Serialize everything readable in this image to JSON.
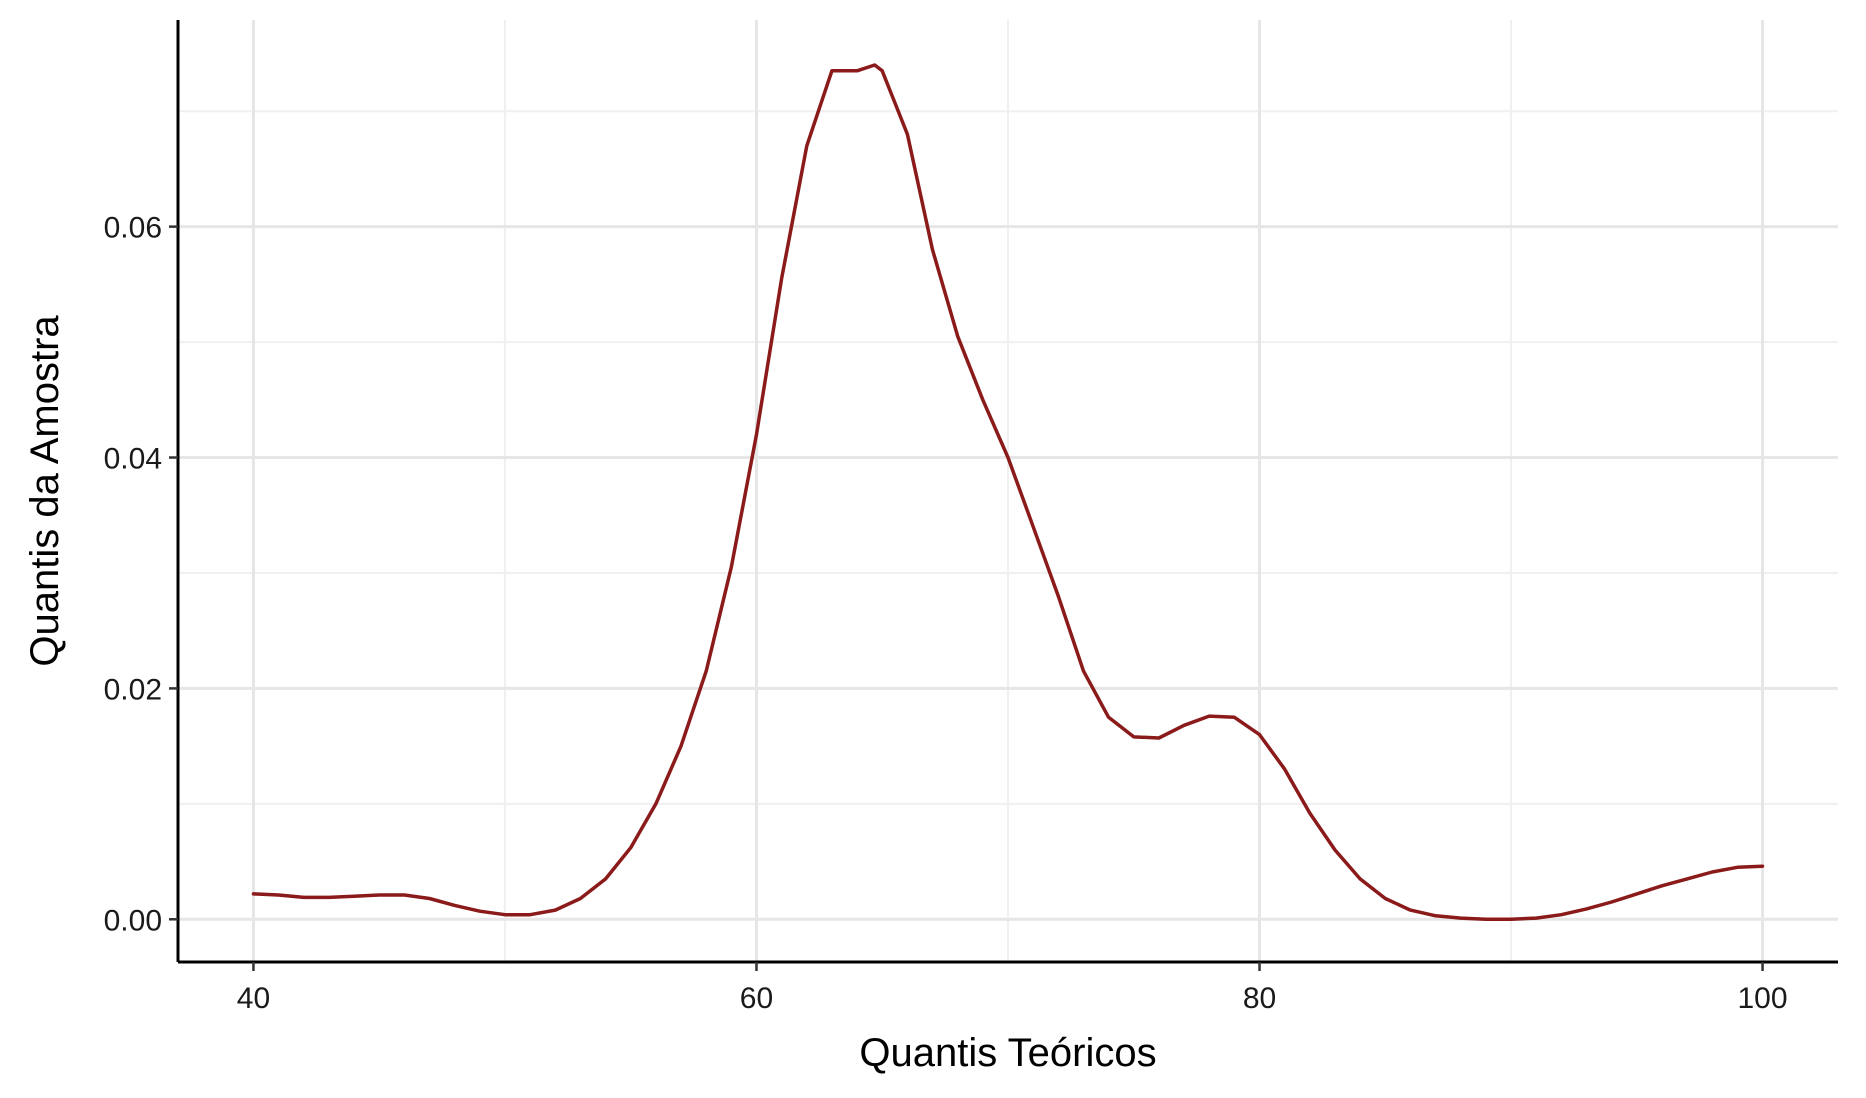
{
  "chart_data": {
    "type": "line",
    "title": "",
    "xlabel": "Quantis Teóricos",
    "ylabel": "Quantis da Amostra",
    "xlim": [
      37,
      103
    ],
    "ylim": [
      -0.0037,
      0.0779
    ],
    "x_ticks": [
      40,
      60,
      80,
      100
    ],
    "x_tick_labels": [
      "40",
      "60",
      "80",
      "100"
    ],
    "x_minor_ticks": [
      50,
      70,
      90
    ],
    "y_ticks": [
      0.0,
      0.02,
      0.04,
      0.06
    ],
    "y_tick_labels": [
      "0.00",
      "0.02",
      "0.04",
      "0.06"
    ],
    "y_minor_ticks": [
      0.01,
      0.03,
      0.05,
      0.07
    ],
    "grid": true,
    "legend": "none",
    "series": [
      {
        "color": "#8b1a1a",
        "x": [
          40,
          41,
          42,
          43,
          44,
          45,
          46,
          47,
          48,
          49,
          50,
          51,
          52,
          53,
          54,
          55,
          56,
          57,
          58,
          59,
          60,
          61,
          62,
          63,
          64,
          64.7,
          65,
          66,
          67,
          68,
          69,
          70,
          71,
          72,
          73,
          74,
          75,
          76,
          77,
          78,
          79,
          80,
          81,
          82,
          83,
          84,
          85,
          86,
          87,
          88,
          89,
          90,
          91,
          92,
          93,
          94,
          95,
          96,
          97,
          98,
          99,
          100
        ],
        "y": [
          0.0022,
          0.0021,
          0.0019,
          0.0019,
          0.002,
          0.0021,
          0.0021,
          0.0018,
          0.0012,
          0.0007,
          0.0004,
          0.0004,
          0.0008,
          0.0018,
          0.0035,
          0.0062,
          0.01,
          0.015,
          0.0215,
          0.0305,
          0.042,
          0.0555,
          0.067,
          0.0735,
          0.0735,
          0.074,
          0.0735,
          0.068,
          0.058,
          0.0505,
          0.045,
          0.04,
          0.034,
          0.028,
          0.0215,
          0.0175,
          0.0158,
          0.0157,
          0.0168,
          0.0176,
          0.0175,
          0.016,
          0.013,
          0.0092,
          0.006,
          0.0035,
          0.0018,
          0.0008,
          0.0003,
          0.0001,
          0.0,
          0.0,
          0.0001,
          0.0004,
          0.0009,
          0.0015,
          0.0022,
          0.0029,
          0.0035,
          0.0041,
          0.0045,
          0.0046
        ]
      }
    ]
  }
}
